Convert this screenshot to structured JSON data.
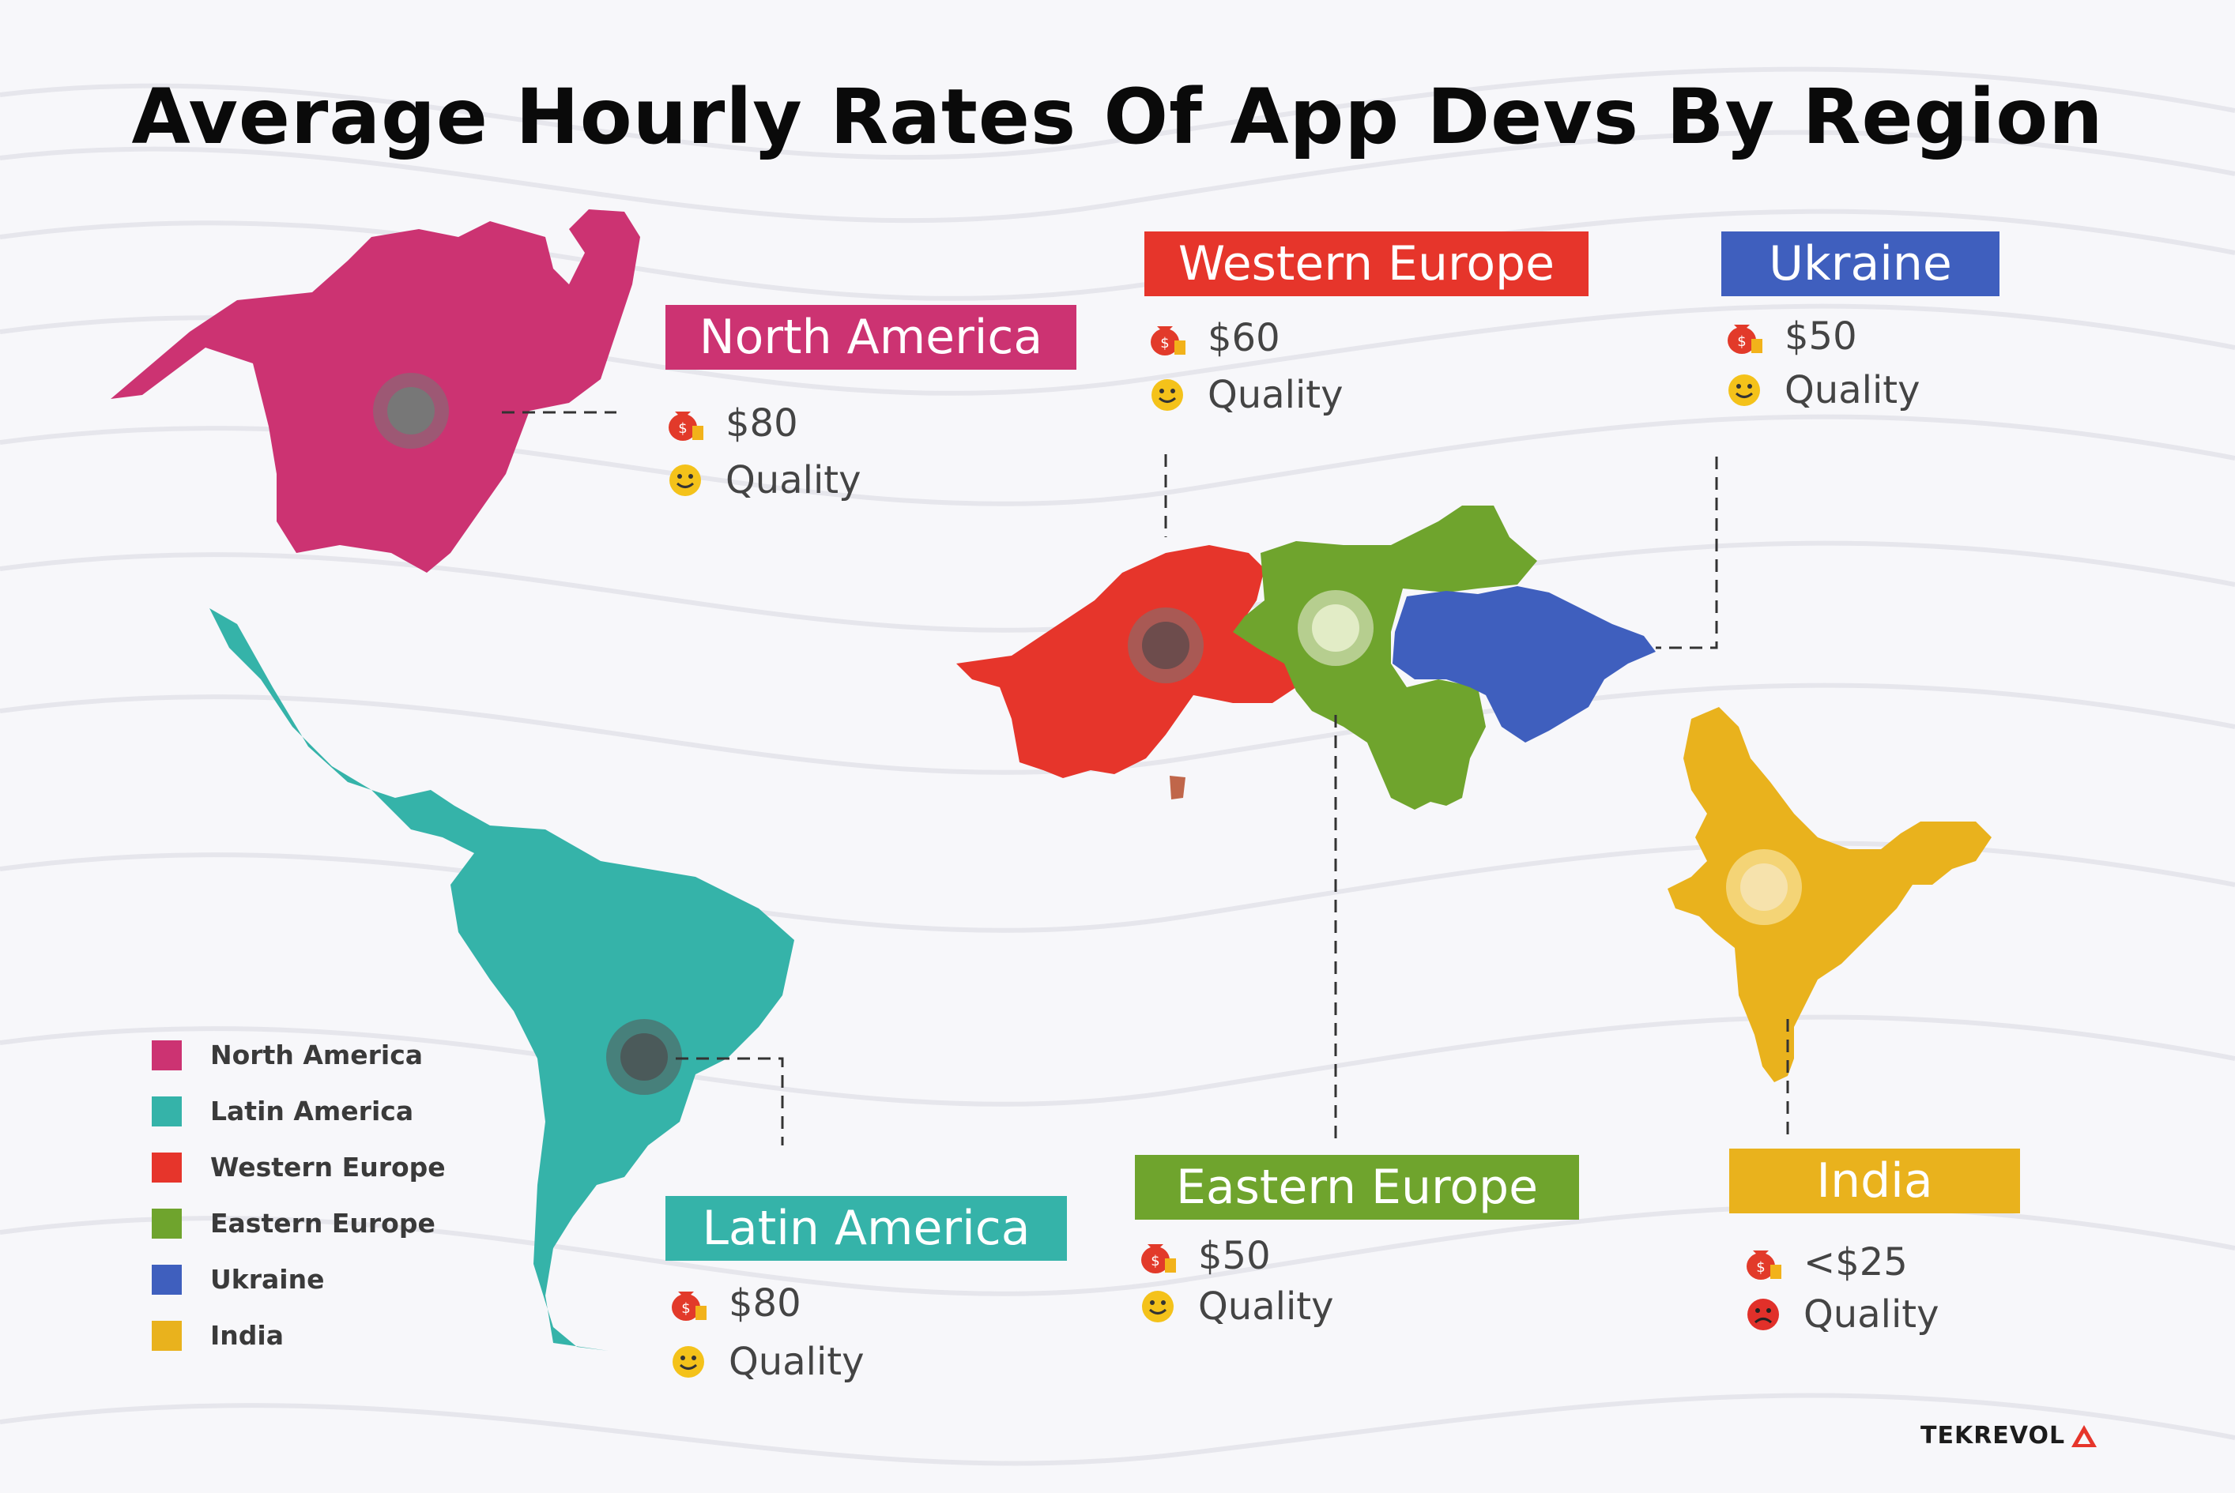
{
  "title": "Average Hourly Rates Of App Devs By Region",
  "colors": {
    "north_america": "#cc3372",
    "latin_america": "#35b3a9",
    "western_europe": "#e6352b",
    "eastern_europe": "#6fa42d",
    "ukraine": "#3f5fbe",
    "india": "#e9b21d"
  },
  "regions": [
    {
      "id": "north_america",
      "name": "North America",
      "rate": "$80",
      "quality_label": "Quality",
      "quality_icon": "smiley-happy-icon"
    },
    {
      "id": "western_europe",
      "name": "Western Europe",
      "rate": "$60",
      "quality_label": "Quality",
      "quality_icon": "smiley-happy-icon"
    },
    {
      "id": "ukraine",
      "name": "Ukraine",
      "rate": "$50",
      "quality_label": "Quality",
      "quality_icon": "smiley-happy-icon"
    },
    {
      "id": "latin_america",
      "name": "Latin America",
      "rate": "$80",
      "quality_label": "Quality",
      "quality_icon": "smiley-happy-icon"
    },
    {
      "id": "eastern_europe",
      "name": "Eastern Europe",
      "rate": "$50",
      "quality_label": "Quality",
      "quality_icon": "smiley-happy-icon"
    },
    {
      "id": "india",
      "name": "India",
      "rate": "<$25",
      "quality_label": "Quality",
      "quality_icon": "smiley-sad-icon"
    }
  ],
  "legend": [
    "North America",
    "Latin America",
    "Western Europe",
    "Eastern Europe",
    "Ukraine",
    "India"
  ],
  "brand": "TEKREVOL"
}
